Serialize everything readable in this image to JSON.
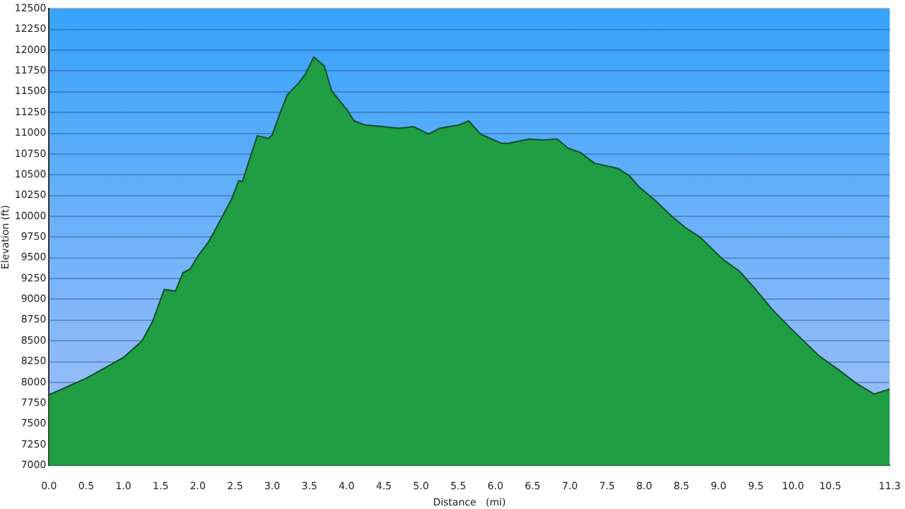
{
  "chart_data": {
    "type": "area",
    "xlabel": "Distance   (mi)",
    "ylabel": "Elevation (ft)",
    "x": [
      0,
      0.5,
      1.0,
      1.25,
      1.4,
      1.5,
      1.55,
      1.7,
      1.8,
      1.9,
      2.0,
      2.15,
      2.3,
      2.45,
      2.55,
      2.6,
      2.7,
      2.8,
      2.95,
      3.0,
      3.1,
      3.2,
      3.35,
      3.45,
      3.56,
      3.7,
      3.8,
      4.0,
      4.1,
      4.25,
      4.5,
      4.7,
      4.9,
      5.1,
      5.25,
      5.32,
      5.51,
      5.64,
      5.8,
      6.08,
      6.17,
      6.45,
      6.64,
      6.83,
      6.98,
      7.14,
      7.33,
      7.64,
      7.8,
      7.93,
      8.15,
      8.37,
      8.56,
      8.75,
      9.06,
      9.28,
      9.47,
      9.72,
      9.97,
      10.35,
      10.6,
      10.85,
      11.09,
      11.3
    ],
    "series": [
      {
        "color": "#1f9e44",
        "values": [
          7850,
          8050,
          8300,
          8500,
          8750,
          9000,
          9120,
          9100,
          9320,
          9370,
          9520,
          9700,
          9950,
          10200,
          10430,
          10420,
          10700,
          10970,
          10940,
          10980,
          11230,
          11460,
          11600,
          11720,
          11920,
          11810,
          11510,
          11290,
          11150,
          11100,
          11080,
          11060,
          11080,
          10990,
          11060,
          11070,
          11100,
          11150,
          10990,
          10880,
          10880,
          10930,
          10920,
          10930,
          10820,
          10770,
          10640,
          10580,
          10490,
          10355,
          10190,
          10000,
          9860,
          9750,
          9480,
          9340,
          9150,
          8880,
          8650,
          8320,
          8160,
          7990,
          7860,
          7920
        ]
      }
    ],
    "xlim": [
      0,
      11.3
    ],
    "xticks": [
      {
        "value": 0,
        "label": "0.0"
      },
      0.5,
      {
        "value": 1,
        "label": "1.0"
      },
      1.5,
      {
        "value": 2,
        "label": "2.0"
      },
      2.5,
      {
        "value": 3,
        "label": "3.0"
      },
      3.5,
      {
        "value": 4,
        "label": "4.0"
      },
      4.5,
      {
        "value": 5,
        "label": "5.0"
      },
      5.5,
      {
        "value": 6,
        "label": "6.0"
      },
      6.5,
      {
        "value": 7,
        "label": "7.0"
      },
      7.5,
      {
        "value": 8,
        "label": "8.0"
      },
      8.5,
      {
        "value": 9,
        "label": "9.0"
      },
      9.5,
      {
        "value": 10,
        "label": "10.0"
      },
      10.5,
      11.3
    ],
    "ylim": [
      7000,
      12500
    ],
    "yticks": [
      7000,
      7250,
      7500,
      7750,
      8000,
      8250,
      8500,
      8750,
      9000,
      9250,
      9500,
      9750,
      10000,
      10250,
      10500,
      10750,
      11000,
      11250,
      11500,
      11750,
      12000,
      12250,
      12500
    ],
    "grid": "y",
    "legend": false
  }
}
